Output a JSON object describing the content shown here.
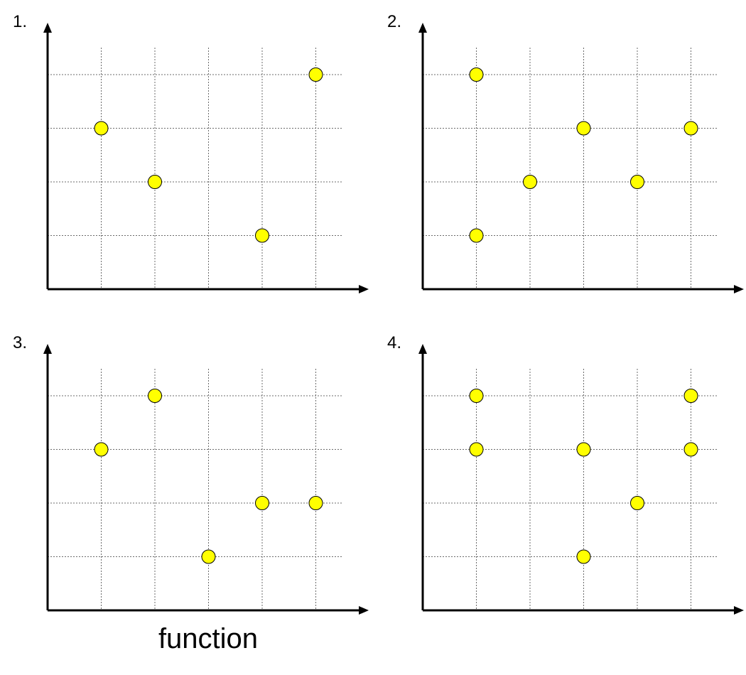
{
  "caption": "function",
  "colors": {
    "point_fill": "#ffff00",
    "point_stroke": "#000000",
    "axis": "#000000",
    "grid": "#6b6b6b"
  },
  "chart_data": [
    {
      "type": "scatter",
      "label": "1.",
      "grid": true,
      "xlim": [
        0,
        6
      ],
      "ylim": [
        0,
        5
      ],
      "points": [
        {
          "x": 1,
          "y": 3
        },
        {
          "x": 2,
          "y": 2
        },
        {
          "x": 4,
          "y": 1
        },
        {
          "x": 5,
          "y": 4
        }
      ]
    },
    {
      "type": "scatter",
      "label": "2.",
      "grid": true,
      "xlim": [
        0,
        6
      ],
      "ylim": [
        0,
        5
      ],
      "points": [
        {
          "x": 1,
          "y": 4
        },
        {
          "x": 1,
          "y": 1
        },
        {
          "x": 2,
          "y": 2
        },
        {
          "x": 3,
          "y": 3
        },
        {
          "x": 4,
          "y": 2
        },
        {
          "x": 5,
          "y": 3
        }
      ]
    },
    {
      "type": "scatter",
      "label": "3.",
      "grid": true,
      "xlim": [
        0,
        6
      ],
      "ylim": [
        0,
        5
      ],
      "points": [
        {
          "x": 1,
          "y": 3
        },
        {
          "x": 2,
          "y": 4
        },
        {
          "x": 3,
          "y": 1
        },
        {
          "x": 4,
          "y": 2
        },
        {
          "x": 5,
          "y": 2
        }
      ]
    },
    {
      "type": "scatter",
      "label": "4.",
      "grid": true,
      "xlim": [
        0,
        6
      ],
      "ylim": [
        0,
        5
      ],
      "points": [
        {
          "x": 1,
          "y": 4
        },
        {
          "x": 1,
          "y": 3
        },
        {
          "x": 3,
          "y": 3
        },
        {
          "x": 3,
          "y": 1
        },
        {
          "x": 4,
          "y": 2
        },
        {
          "x": 5,
          "y": 4
        },
        {
          "x": 5,
          "y": 3
        }
      ]
    }
  ]
}
